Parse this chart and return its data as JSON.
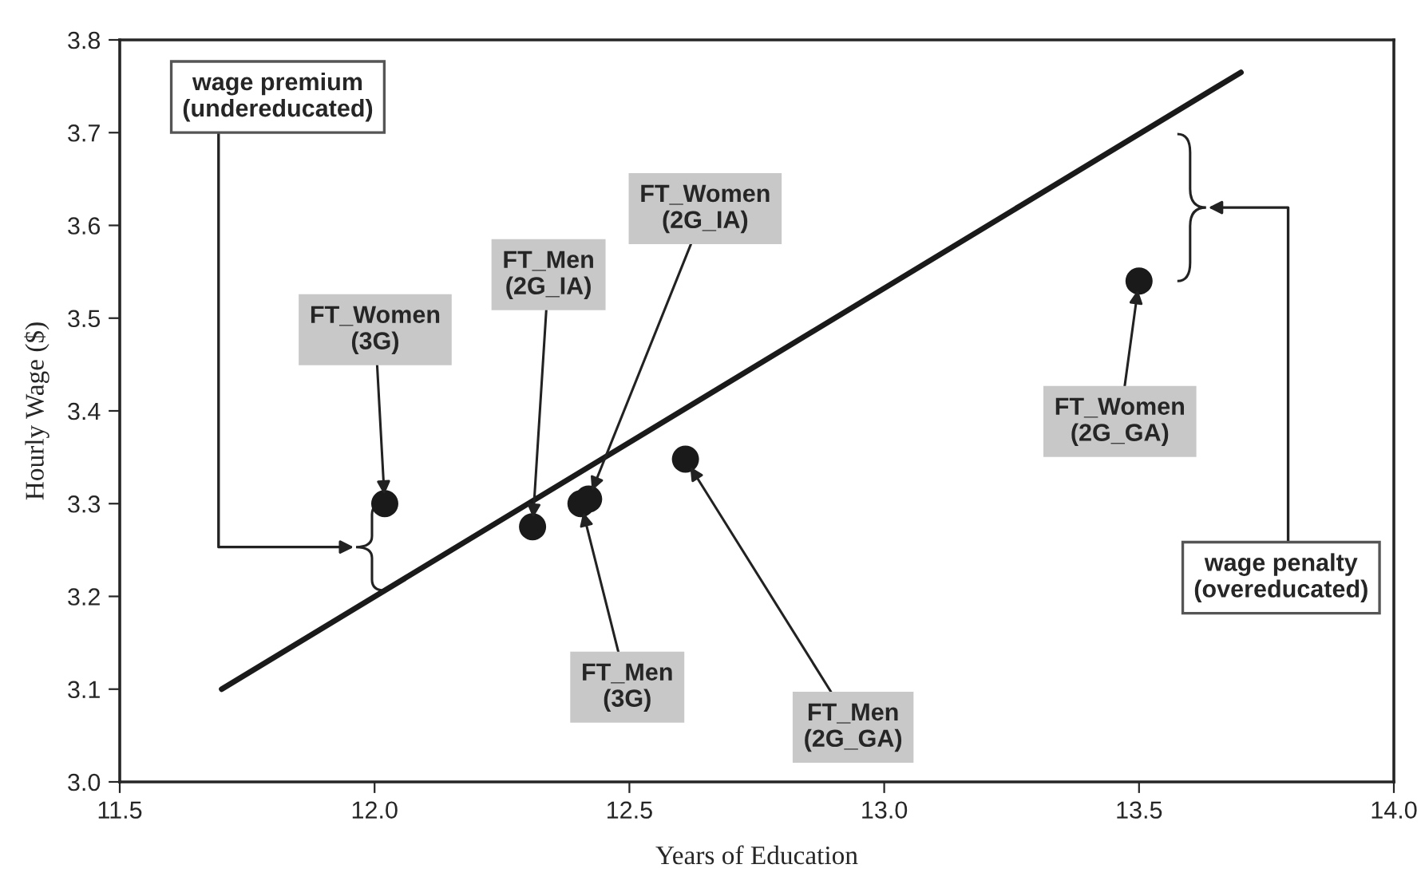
{
  "chart_data": {
    "type": "scatter",
    "xlabel": "Years of Education",
    "ylabel": "Hourly Wage ($)",
    "xlim": [
      11.5,
      14.0
    ],
    "xticks": [
      {
        "value": 11.5,
        "label": "11.5"
      },
      {
        "value": 12.0,
        "label": "12.0"
      },
      {
        "value": 12.5,
        "label": "12.5"
      },
      {
        "value": 13.0,
        "label": "13.0"
      },
      {
        "value": 13.5,
        "label": "13.5"
      },
      {
        "value": 14.0,
        "label": "14.0"
      }
    ],
    "ylim": [
      3.0,
      3.8
    ],
    "yticks": [
      {
        "value": 3.0,
        "label": "3.0"
      },
      3.1,
      3.2,
      3.3,
      3.4,
      3.5,
      3.6,
      3.7,
      3.8
    ],
    "grid": false,
    "legend": false,
    "marker": "circle",
    "series": [
      {
        "color": "#1a1a1a",
        "x": [
          12.02,
          12.31,
          12.405,
          12.42,
          12.61,
          13.5
        ],
        "values": [
          3.3,
          3.275,
          3.3,
          3.305,
          3.348,
          3.54
        ]
      },
      {
        "type": "line",
        "color": "#1a1a1a",
        "x": [
          11.7,
          13.7
        ],
        "values": [
          3.1,
          3.765
        ],
        "line_style": "solid",
        "marker": "none"
      }
    ],
    "annotations": [
      {
        "text": "FT_Women\n(3G)",
        "x": 12.02,
        "y": 3.3
      },
      {
        "text": "FT_Men\n(2G_IA)",
        "x": 12.31,
        "y": 3.275
      },
      {
        "text": "FT_Women\n(2G_IA)",
        "x": 12.42,
        "y": 3.305
      },
      {
        "text": "FT_Men\n(3G)",
        "x": 12.405,
        "y": 3.3
      },
      {
        "text": "FT_Men\n(2G_GA)",
        "x": 12.61,
        "y": 3.348
      },
      {
        "text": "FT_Women\n(2G_GA)",
        "x": 13.5,
        "y": 3.54
      },
      "wage premium\n(undereducated)",
      "wage penalty\n(overeducated)"
    ]
  }
}
